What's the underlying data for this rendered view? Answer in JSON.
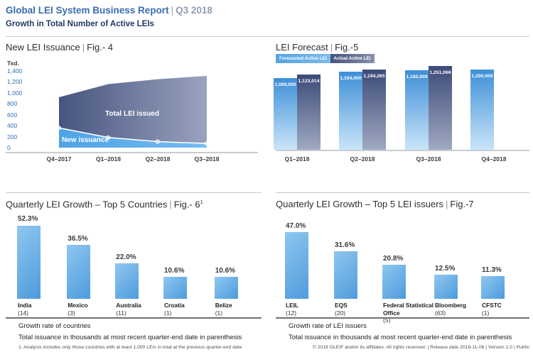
{
  "sep": "|",
  "header": {
    "title": "Global LEI System Business Report",
    "period": "Q3 2018",
    "subtitle": "Growth in Total Number of Active LEIs"
  },
  "chart_data": [
    {
      "id": "fig4",
      "type": "area",
      "title": "New LEI Issuance",
      "fig": "Fig.- 4",
      "ylabel": "Tsd.",
      "ylim": [
        0,
        1400
      ],
      "yticks": [
        "1,400",
        "1,200",
        "1,000",
        "800",
        "600",
        "400",
        "200",
        "0"
      ],
      "categories": [
        "Q4–2017",
        "Q1–2018",
        "Q2–2018",
        "Q3–2018"
      ],
      "series": [
        {
          "name": "Total LEI issued",
          "values": [
            920,
            1160,
            1250,
            1310
          ]
        },
        {
          "name": "New issuance",
          "values": [
            360,
            185,
            110,
            75
          ]
        }
      ],
      "grid": false
    },
    {
      "id": "fig5",
      "type": "bar",
      "title": "LEI Forecast",
      "fig": "Fig.-5",
      "legend_position": "top-left",
      "categories": [
        "Q1–2018",
        "Q2–2018",
        "Q3–2018",
        "Q4–2018"
      ],
      "series": [
        {
          "name": "Forecasted Active LEI",
          "values": [
            1069000,
            1164000,
            1182000,
            1200000
          ],
          "labels": [
            "1,069,000",
            "1,164,000",
            "1,182,000",
            "1,200,000"
          ]
        },
        {
          "name": "Actual Active LEI",
          "values": [
            1123014,
            1194265,
            1251066,
            null
          ],
          "labels": [
            "1,123,014",
            "1,194,265",
            "1,251,066",
            null
          ]
        }
      ]
    },
    {
      "id": "fig6",
      "type": "bar",
      "title": "Quarterly LEI Growth – Top 5 Countries",
      "fig": "Fig.- 6",
      "fig_sup": "1",
      "categories": [
        "India",
        "Mexico",
        "Australia",
        "Croatia",
        "Belize"
      ],
      "counts": [
        "(14)",
        "(3)",
        "(11)",
        "(1)",
        "(1)"
      ],
      "values": [
        52.3,
        36.5,
        22.0,
        10.6,
        10.6
      ],
      "value_labels": [
        "52.3%",
        "36.5%",
        "22.0%",
        "10.6%",
        "10.6%"
      ],
      "captions": [
        "Growth rate of countries",
        "Total issuance in thousands at most recent quarter-end date in parenthesis"
      ]
    },
    {
      "id": "fig7",
      "type": "bar",
      "title": "Quarterly LEI Growth – Top 5 LEI issuers",
      "fig": "Fig.-7",
      "categories": [
        "LEIL",
        "EQS",
        "Federal Statistical Office",
        "Bloomberg",
        "CFSTC"
      ],
      "counts": [
        "(12)",
        "(20)",
        "(5)",
        "(63)",
        "(1)"
      ],
      "values": [
        47.0,
        31.6,
        20.8,
        12.5,
        11.3
      ],
      "value_labels": [
        "47.0%",
        "31.6%",
        "20.8%",
        "12.5%",
        "11.3%"
      ],
      "captions": [
        "Growth rate of LEI issuers",
        "Total issuance in thousands at most recent quarter-end date in parenthesis"
      ]
    }
  ],
  "footnote": "1. Analysis includes only those countries with at least 1,000 LEIs in total at the previous quarter-end date",
  "footer": "© 2018 GLEIF and/or its affiliates. All rights reserved.  |  Release date 2018-11-06  |  Version 1.0  |  Public",
  "colors": {
    "header_blue": "#3a6cb0",
    "subtitle_navy": "#1f3965",
    "axis_tick_blue": "#2f6eb6",
    "area_dark_left": "#46547f",
    "area_dark_right": "#9aa3be",
    "area_light_blue": "#4da3e6",
    "forecast_bar_top": "#3f8fd7",
    "forecast_bar_bottom": "#c9e5f9",
    "actual_bar_top": "#3c4b78",
    "actual_bar_bottom": "#a0a9c1",
    "country_bar_light": "#8fc7f0",
    "country_bar_dark": "#4e9bdc"
  }
}
